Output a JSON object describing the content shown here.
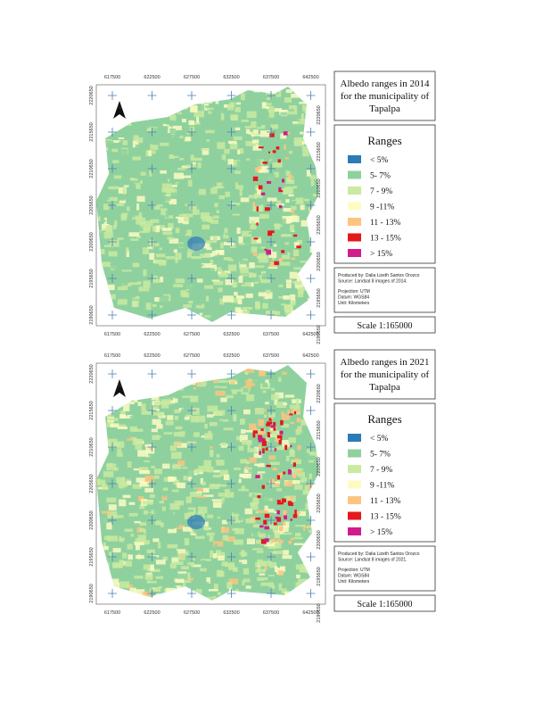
{
  "maps": [
    {
      "title": [
        "Albedo ranges in 2014",
        "for the municipality of",
        "Tapalpa"
      ],
      "x_labels": [
        "617500",
        "622500",
        "627500",
        "632500",
        "637500",
        "642500"
      ],
      "y_labels": [
        "2220650",
        "2215650",
        "2210650",
        "2205650",
        "2200650",
        "2195650",
        "2190650"
      ],
      "north": "N",
      "legend": {
        "title": "Ranges",
        "items": [
          {
            "label": "< 5%",
            "color": "#2c7bb6"
          },
          {
            "label": "5- 7%",
            "color": "#8fd19e"
          },
          {
            "label": "7 - 9%",
            "color": "#c9eaa0"
          },
          {
            "label": "9 -11%",
            "color": "#fdfbc2"
          },
          {
            "label": "11 - 13%",
            "color": "#fcc57f"
          },
          {
            "label": "13 - 15%",
            "color": "#e3191c"
          },
          {
            "label": "> 15%",
            "color": "#d01c8b"
          }
        ]
      },
      "credits": [
        "Produced by: Dalia Lizeth Santos Orozco",
        "Source: Landsat 8 images of 2014.",
        "Projection: UTM",
        "Datum: WGS84",
        "Unit: Kilometers"
      ],
      "scale": "Scale 1:165000"
    },
    {
      "title": [
        "Albedo ranges in 2021",
        "for the municipality of",
        "Tapalpa"
      ],
      "x_labels": [
        "617500",
        "622500",
        "627500",
        "632500",
        "637500",
        "642500"
      ],
      "y_labels": [
        "2220650",
        "2215650",
        "2210650",
        "2205650",
        "2200650",
        "2195650",
        "2190650"
      ],
      "north": "N",
      "legend": {
        "title": "Ranges",
        "items": [
          {
            "label": "< 5%",
            "color": "#2c7bb6"
          },
          {
            "label": "5- 7%",
            "color": "#8fd19e"
          },
          {
            "label": "7 - 9%",
            "color": "#c9eaa0"
          },
          {
            "label": "9 -11%",
            "color": "#fdfbc2"
          },
          {
            "label": "11 - 13%",
            "color": "#fcc57f"
          },
          {
            "label": "13 - 15%",
            "color": "#e3191c"
          },
          {
            "label": "> 15%",
            "color": "#d01c8b"
          }
        ]
      },
      "credits": [
        "Produced by: Dalia Lizeth Santos Orozco",
        "Source: Landsat 8 images of 2021.",
        "Projection: UTM",
        "Datum: WGS84",
        "Unit: Kilometers"
      ],
      "scale": "Scale 1:165000"
    }
  ]
}
